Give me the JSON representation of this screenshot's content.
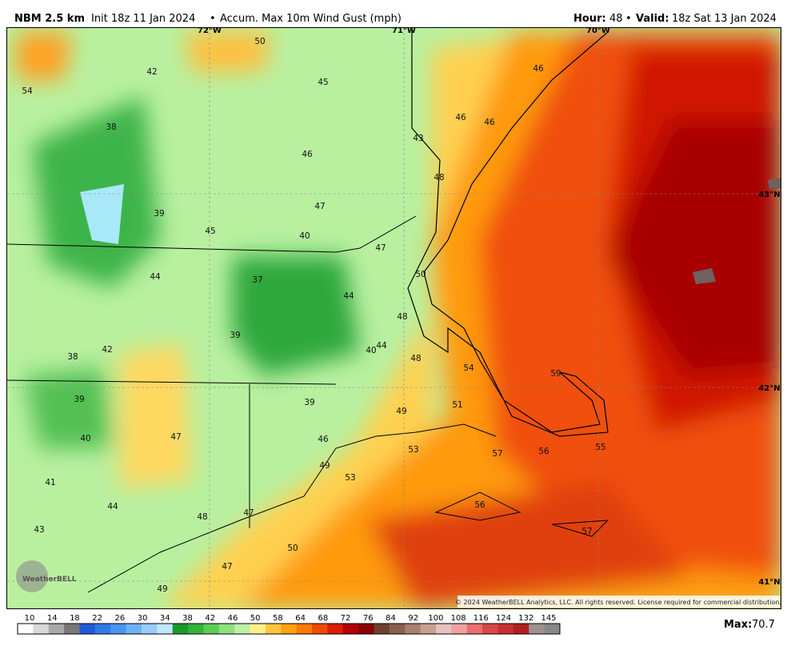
{
  "header": {
    "model": "NBM 2.5 km",
    "init": "Init 18z 11 Jan 2024",
    "separator": "•",
    "field": "Accum. Max 10m Wind Gust (mph)",
    "hour_label": "Hour:",
    "hour_value": "48",
    "valid_label": "Valid:",
    "valid_value": "18z Sat 13 Jan 2024"
  },
  "map": {
    "lon_labels": [
      "72°W",
      "71°W",
      "70°W"
    ],
    "lat_labels": [
      "43°N",
      "42°N",
      "41°N"
    ],
    "values": [
      "50",
      "42",
      "54",
      "45",
      "46",
      "38",
      "46",
      "46",
      "43",
      "46",
      "48",
      "39",
      "47",
      "45",
      "40",
      "47",
      "50",
      "44",
      "37",
      "44",
      "48",
      "39",
      "42",
      "38",
      "40",
      "44",
      "48",
      "54",
      "59",
      "39",
      "39",
      "51",
      "49",
      "40",
      "47",
      "46",
      "53",
      "57",
      "56",
      "55",
      "49",
      "53",
      "41",
      "44",
      "56",
      "48",
      "47",
      "43",
      "57",
      "50",
      "47",
      "49"
    ],
    "logo": "WeatherBELL",
    "copyright": "© 2024 WeatherBELL Analytics, LLC. All rights reserved. License required for commercial distribution."
  },
  "colorbar": {
    "labels": [
      "10",
      "14",
      "18",
      "22",
      "26",
      "30",
      "34",
      "38",
      "42",
      "46",
      "50",
      "58",
      "64",
      "68",
      "72",
      "76",
      "84",
      "92",
      "100",
      "108",
      "116",
      "124",
      "132",
      "145"
    ],
    "colors": [
      "#ffffff",
      "#d8d8d8",
      "#a8a8a8",
      "#787878",
      "#1e5bd6",
      "#2f7ae8",
      "#4a94f0",
      "#6fb0f5",
      "#98cdf8",
      "#bfe6fb",
      "#1a9a2a",
      "#35b23a",
      "#5ccc55",
      "#8ee07f",
      "#bdf0a8",
      "#fff08a",
      "#ffc63a",
      "#ffa010",
      "#ff7a00",
      "#f04a00",
      "#d81e00",
      "#b40000",
      "#8c0000",
      "#6e4030",
      "#8a6050",
      "#a88070",
      "#c8a090",
      "#e8c0c0",
      "#f0a0a0",
      "#e87070",
      "#d84848",
      "#c83030",
      "#b02020",
      "#a09090",
      "#888888"
    ]
  },
  "max": {
    "label": "Max:",
    "value": "70.7"
  }
}
